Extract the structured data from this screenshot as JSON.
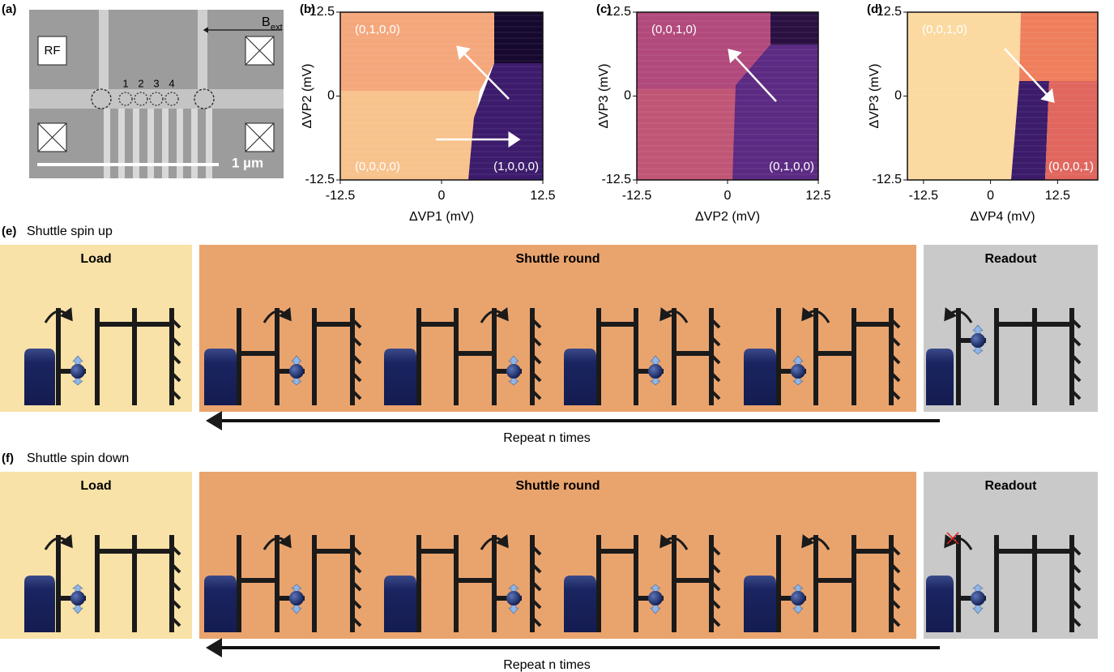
{
  "panel_a": {
    "label": "(a)",
    "rf_label": "RF",
    "field": "B",
    "field_subscript": "ext",
    "dot_labels": [
      "1",
      "2",
      "3",
      "4"
    ],
    "scale_bar": "1 µm"
  },
  "maps": [
    {
      "label": "(b)",
      "xlabel": "ΔVP1 (mV)",
      "ylabel": "ΔVP2 (mV)",
      "xlim": [
        -12.5,
        12.5
      ],
      "ylim": [
        -12.5,
        12.5
      ],
      "xticks": [
        -12.5,
        0,
        12.5
      ],
      "yticks": [
        -12.5,
        0,
        12.5
      ],
      "states": [
        "(0,1,0,0)",
        "(0,0,0,0)",
        "(1,0,0,0)"
      ]
    },
    {
      "label": "(c)",
      "xlabel": "ΔVP2 (mV)",
      "ylabel": "ΔVP3 (mV)",
      "xlim": [
        -12.5,
        12.5
      ],
      "ylim": [
        -12.5,
        12.5
      ],
      "xticks": [
        -12.5,
        0,
        12.5
      ],
      "yticks": [
        -12.5,
        0,
        12.5
      ],
      "states": [
        "(0,0,1,0)",
        "(0,1,0,0)"
      ]
    },
    {
      "label": "(d)",
      "xlabel": "ΔVP4 (mV)",
      "ylabel": "ΔVP3 (mV)",
      "xlim": [
        -15.5,
        20
      ],
      "ylim": [
        -12.5,
        12.5
      ],
      "xticks": [
        -12.5,
        0,
        12.5
      ],
      "yticks": [
        -12.5,
        0,
        12.5
      ],
      "states": [
        "(0,0,1,0)",
        "(0,0,0,1)"
      ]
    }
  ],
  "sequences": [
    {
      "label": "(e)",
      "title": "Shuttle spin up",
      "stages": [
        "Load",
        "Shuttle round",
        "Readout"
      ],
      "repeat": "Repeat n times"
    },
    {
      "label": "(f)",
      "title": "Shuttle spin down",
      "stages": [
        "Load",
        "Shuttle round",
        "Readout"
      ],
      "repeat": "Repeat n times"
    }
  ]
}
